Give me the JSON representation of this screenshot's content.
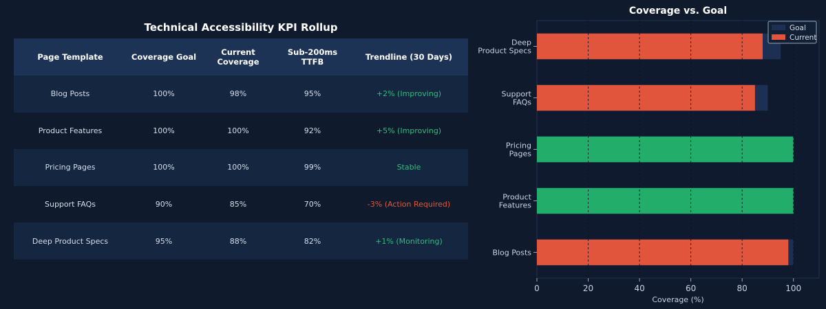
{
  "table": {
    "title": "Technical Accessibility KPI Rollup",
    "headers": [
      "Page Template",
      "Coverage Goal",
      "Current Coverage",
      "Sub-200ms TTFB",
      "Trendline (30 Days)"
    ],
    "rows": [
      {
        "template": "Blog Posts",
        "goal": "100%",
        "current": "98%",
        "ttfb": "95%",
        "trend": "+2% (Improving)",
        "trend_status": "good"
      },
      {
        "template": "Product Features",
        "goal": "100%",
        "current": "100%",
        "ttfb": "92%",
        "trend": "+5% (Improving)",
        "trend_status": "good"
      },
      {
        "template": "Pricing Pages",
        "goal": "100%",
        "current": "100%",
        "ttfb": "99%",
        "trend": "Stable",
        "trend_status": "good"
      },
      {
        "template": "Support FAQs",
        "goal": "90%",
        "current": "85%",
        "ttfb": "70%",
        "trend": "-3% (Action Required)",
        "trend_status": "bad"
      },
      {
        "template": "Deep Product Specs",
        "goal": "95%",
        "current": "88%",
        "ttfb": "82%",
        "trend": "+1% (Monitoring)",
        "trend_status": "good"
      }
    ]
  },
  "chart_data": {
    "type": "bar",
    "orientation": "horizontal",
    "title": "Coverage vs. Goal",
    "xlabel": "Coverage (%)",
    "ylabel": "",
    "xlim": [
      0,
      110
    ],
    "xticks": [
      0,
      20,
      40,
      60,
      80,
      100
    ],
    "grid": true,
    "legend_position": "top-right",
    "categories": [
      [
        "Blog Posts"
      ],
      [
        "Product",
        "Features"
      ],
      [
        "Pricing",
        "Pages"
      ],
      [
        "Support",
        "FAQs"
      ],
      [
        "Deep",
        "Product Specs"
      ]
    ],
    "series": [
      {
        "name": "Goal",
        "values": [
          100,
          100,
          100,
          90,
          95
        ],
        "color": "#1d2f52"
      },
      {
        "name": "Current",
        "values": [
          98,
          100,
          100,
          85,
          88
        ],
        "colors": [
          "#e0553b",
          "#22ad6b",
          "#22ad6b",
          "#e0553b",
          "#e0553b"
        ],
        "color": "#e0553b"
      }
    ]
  },
  "colors": {
    "background": "#0f1b2d",
    "header_bg": "#1d3356",
    "row_alt_bg": "#142640",
    "plot_bg": "#0f1a2e",
    "good": "#2fbd78",
    "bad": "#e2573b"
  }
}
